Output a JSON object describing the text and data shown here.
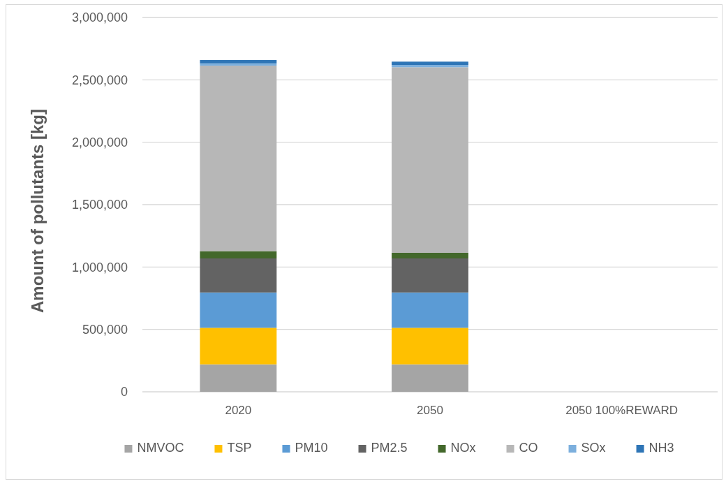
{
  "chart_data": {
    "type": "bar",
    "ylabel": "Amount of pollutants [kg]",
    "categories": [
      "2020",
      "2050",
      "2050 100%REWARD"
    ],
    "stacked": true,
    "series": [
      {
        "name": "NMVOC",
        "color": "#a5a5a5",
        "values": [
          220000,
          220000,
          0
        ]
      },
      {
        "name": "TSP",
        "color": "#ffc000",
        "values": [
          293000,
          293000,
          0
        ]
      },
      {
        "name": "PM10",
        "color": "#5b9bd5",
        "values": [
          283000,
          283000,
          0
        ]
      },
      {
        "name": "PM2.5",
        "color": "#636363",
        "values": [
          273000,
          273000,
          0
        ]
      },
      {
        "name": "NOx",
        "color": "#43682b",
        "values": [
          58000,
          45000,
          0
        ]
      },
      {
        "name": "CO",
        "color": "#b7b7b7",
        "values": [
          1487000,
          1487000,
          0
        ]
      },
      {
        "name": "SOx",
        "color": "#7cafdd",
        "values": [
          18000,
          18000,
          0
        ]
      },
      {
        "name": "NH3",
        "color": "#2e75b6",
        "values": [
          27000,
          27000,
          0
        ]
      }
    ],
    "ylim": [
      0,
      3000000
    ],
    "yticks": [
      {
        "value": 0,
        "label": "0"
      },
      {
        "value": 500000,
        "label": "500,000"
      },
      {
        "value": 1000000,
        "label": "1,000,000"
      },
      {
        "value": 1500000,
        "label": "1,500,000"
      },
      {
        "value": 2000000,
        "label": "2,000,000"
      },
      {
        "value": 2500000,
        "label": "2,500,000"
      },
      {
        "value": 3000000,
        "label": "3,000,000"
      }
    ],
    "grid": "y",
    "legend": "bottom"
  }
}
